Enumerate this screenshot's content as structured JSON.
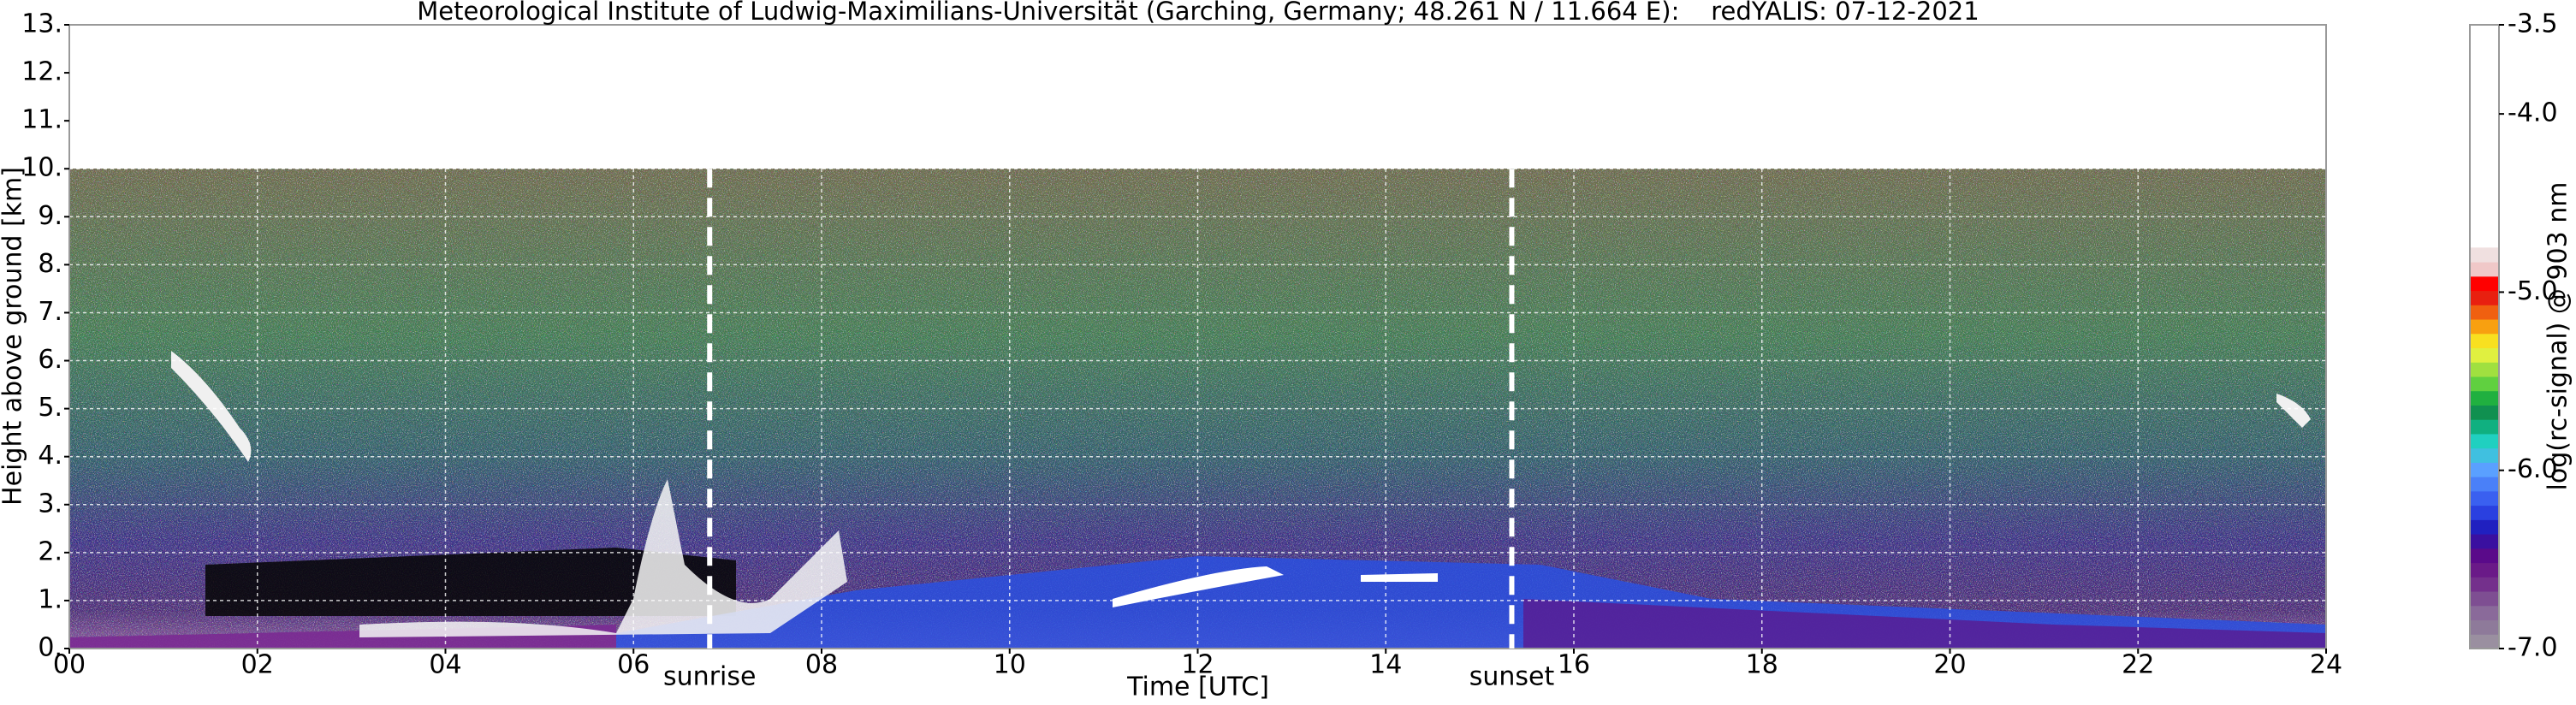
{
  "chart_data": {
    "type": "heatmap",
    "title": "Meteorological Institute of Ludwig-Maximilians-Universität (Garching, Germany; 48.261 N / 11.664 E):    redYALIS: 07-12-2021",
    "xlabel": "Time [UTC]",
    "ylabel": "Height above ground [km]",
    "xlim": [
      0,
      24
    ],
    "xticks": [
      {
        "value": 0,
        "label": "00"
      },
      {
        "value": 2,
        "label": "02"
      },
      {
        "value": 4,
        "label": "04"
      },
      {
        "value": 6,
        "label": "06"
      },
      {
        "value": 8,
        "label": "08"
      },
      {
        "value": 10,
        "label": "10"
      },
      {
        "value": 12,
        "label": "12"
      },
      {
        "value": 14,
        "label": "14"
      },
      {
        "value": 16,
        "label": "16"
      },
      {
        "value": 18,
        "label": "18"
      },
      {
        "value": 20,
        "label": "20"
      },
      {
        "value": 22,
        "label": "22"
      },
      {
        "value": 24,
        "label": "24"
      }
    ],
    "ylim": [
      0,
      13
    ],
    "yticks": [
      {
        "value": 0,
        "label": "0."
      },
      {
        "value": 1,
        "label": "1."
      },
      {
        "value": 2,
        "label": "2."
      },
      {
        "value": 3,
        "label": "3."
      },
      {
        "value": 4,
        "label": "4."
      },
      {
        "value": 5,
        "label": "5."
      },
      {
        "value": 6,
        "label": "6."
      },
      {
        "value": 7,
        "label": "7."
      },
      {
        "value": 8,
        "label": "8."
      },
      {
        "value": 9,
        "label": "9."
      },
      {
        "value": 10,
        "label": "10."
      },
      {
        "value": 11,
        "label": "11."
      },
      {
        "value": 12,
        "label": "12."
      },
      {
        "value": 13,
        "label": "13."
      }
    ],
    "grid": true,
    "annotations": [
      {
        "text": "sunrise",
        "x": 6.81
      },
      {
        "text": "sunset",
        "x": 15.34
      }
    ],
    "colorbar": {
      "label": "log(rc-signal) @ 903 nm",
      "lim": [
        -7.0,
        -3.5
      ],
      "ticks": [
        {
          "value": -3.5,
          "label": "-3.5"
        },
        {
          "value": -4,
          "label": "-4.0"
        },
        {
          "value": -5,
          "label": "-5.0"
        },
        {
          "value": -6,
          "label": "-6.0"
        },
        {
          "value": -7,
          "label": "-7.0"
        }
      ],
      "color_range": [
        -7.0,
        -4.75
      ],
      "colors": [
        "#9a8fa0",
        "#8e7a9a",
        "#8a6a9a",
        "#7e4e92",
        "#74308c",
        "#6a1a88",
        "#5a0a8a",
        "#3a10a0",
        "#2020c0",
        "#2a40e0",
        "#3a60f0",
        "#4a80f8",
        "#5aa0ff",
        "#40c0e0",
        "#20d0c0",
        "#10b080",
        "#109050",
        "#20b040",
        "#60d040",
        "#a0e040",
        "#e0f040",
        "#f8e020",
        "#f8a010",
        "#f06010",
        "#e82010",
        "#ff0000",
        "#f0c8c8",
        "#f0e0e0"
      ],
      "over_color": "#ffffff"
    }
  }
}
